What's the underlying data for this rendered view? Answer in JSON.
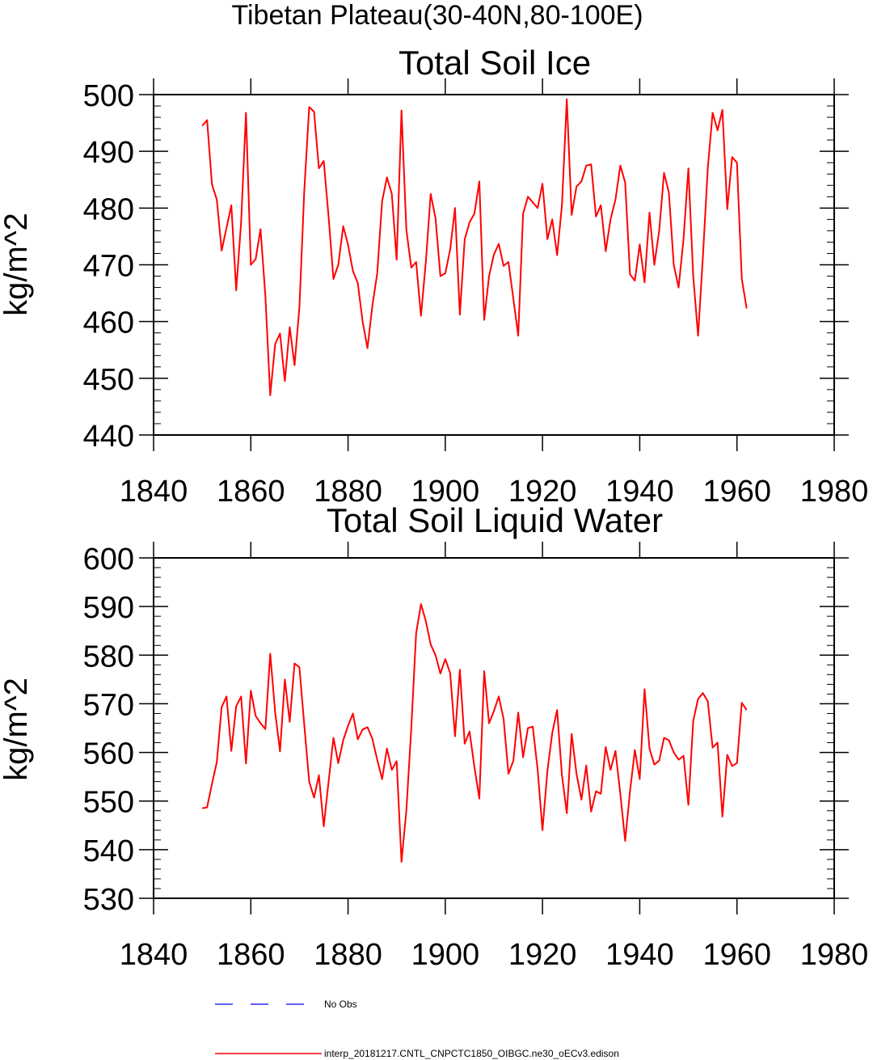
{
  "page_title": "Tibetan Plateau(30-40N,80-100E)",
  "chart_data": [
    {
      "type": "line",
      "title": "Total Soil Ice",
      "xlabel": "",
      "ylabel": "kg/m^2",
      "xlim": [
        1840,
        1980
      ],
      "ylim": [
        440,
        500
      ],
      "xticks": [
        1840,
        1860,
        1880,
        1900,
        1920,
        1940,
        1960,
        1980
      ],
      "yticks": [
        440,
        450,
        460,
        470,
        480,
        490,
        500
      ],
      "x": [
        1850,
        1851,
        1852,
        1853,
        1854,
        1855,
        1856,
        1857,
        1858,
        1859,
        1860,
        1861,
        1862,
        1863,
        1864,
        1865,
        1866,
        1867,
        1868,
        1869,
        1870,
        1871,
        1872,
        1873,
        1874,
        1875,
        1876,
        1877,
        1878,
        1879,
        1880,
        1881,
        1882,
        1883,
        1884,
        1885,
        1886,
        1887,
        1888,
        1889,
        1890,
        1891,
        1892,
        1893,
        1894,
        1895,
        1896,
        1897,
        1898,
        1899,
        1900,
        1901,
        1902,
        1903,
        1904,
        1905,
        1906,
        1907,
        1908,
        1909,
        1910,
        1911,
        1912,
        1913,
        1914,
        1915,
        1916,
        1917,
        1918,
        1919,
        1920,
        1921,
        1922,
        1923,
        1924,
        1925,
        1926,
        1927,
        1928,
        1929,
        1930,
        1931,
        1932,
        1933,
        1934,
        1935,
        1936,
        1937,
        1938,
        1939,
        1940,
        1941,
        1942,
        1943,
        1944,
        1945,
        1946,
        1947,
        1948,
        1949,
        1950,
        1951,
        1952,
        1953,
        1954,
        1955,
        1956,
        1957,
        1958,
        1959,
        1960,
        1961,
        1962
      ],
      "series": [
        {
          "name": "interp_20181217.CNTL_CNPCTC1850_OIBGC.ne30_oECv3.edison",
          "color": "#ff0000",
          "values": [
            494.5,
            495.5,
            484.2,
            481.5,
            472.5,
            476.5,
            480.5,
            465.5,
            477.5,
            496.8,
            470.0,
            471.0,
            476.3,
            464.5,
            447.0,
            456.0,
            457.9,
            449.5,
            459.0,
            452.3,
            462.5,
            483.0,
            497.8,
            497.0,
            487.0,
            488.3,
            478.5,
            467.5,
            470.0,
            476.8,
            473.5,
            468.9,
            466.8,
            460.0,
            455.3,
            462.7,
            468.5,
            481.2,
            485.4,
            482.5,
            470.9,
            497.2,
            476.2,
            469.5,
            470.5,
            461.0,
            470.5,
            482.5,
            478.2,
            468.0,
            468.5,
            472.7,
            480.0,
            461.2,
            474.5,
            477.5,
            479.0,
            484.7,
            460.3,
            468.0,
            471.8,
            473.7,
            469.8,
            470.5,
            464.0,
            457.5,
            479.0,
            482.0,
            481.0,
            480.0,
            484.3,
            474.5,
            478.0,
            471.7,
            480.5,
            499.2,
            478.8,
            483.8,
            484.7,
            487.5,
            487.7,
            478.5,
            480.5,
            472.4,
            478.0,
            481.5,
            487.5,
            484.5,
            468.3,
            467.2,
            473.6,
            466.9,
            479.2,
            470.0,
            476.0,
            486.2,
            482.7,
            470.0,
            466.0,
            474.5,
            487.0,
            468.0,
            457.5,
            471.5,
            487.0,
            496.8,
            493.7,
            497.3,
            479.8,
            489.0,
            488.0,
            467.5,
            462.3
          ]
        }
      ]
    },
    {
      "type": "line",
      "title": "Total Soil Liquid Water",
      "xlabel": "",
      "ylabel": "kg/m^2",
      "xlim": [
        1840,
        1980
      ],
      "ylim": [
        530,
        600
      ],
      "xticks": [
        1840,
        1860,
        1880,
        1900,
        1920,
        1940,
        1960,
        1980
      ],
      "yticks": [
        530,
        540,
        550,
        560,
        570,
        580,
        590,
        600
      ],
      "x": [
        1850,
        1851,
        1852,
        1853,
        1854,
        1855,
        1856,
        1857,
        1858,
        1859,
        1860,
        1861,
        1862,
        1863,
        1864,
        1865,
        1866,
        1867,
        1868,
        1869,
        1870,
        1871,
        1872,
        1873,
        1874,
        1875,
        1876,
        1877,
        1878,
        1879,
        1880,
        1881,
        1882,
        1883,
        1884,
        1885,
        1886,
        1887,
        1888,
        1889,
        1890,
        1891,
        1892,
        1893,
        1894,
        1895,
        1896,
        1897,
        1898,
        1899,
        1900,
        1901,
        1902,
        1903,
        1904,
        1905,
        1906,
        1907,
        1908,
        1909,
        1910,
        1911,
        1912,
        1913,
        1914,
        1915,
        1916,
        1917,
        1918,
        1919,
        1920,
        1921,
        1922,
        1923,
        1924,
        1925,
        1926,
        1927,
        1928,
        1929,
        1930,
        1931,
        1932,
        1933,
        1934,
        1935,
        1936,
        1937,
        1938,
        1939,
        1940,
        1941,
        1942,
        1943,
        1944,
        1945,
        1946,
        1947,
        1948,
        1949,
        1950,
        1951,
        1952,
        1953,
        1954,
        1955,
        1956,
        1957,
        1958,
        1959,
        1960,
        1961,
        1962
      ],
      "series": [
        {
          "name": "interp_20181217.CNTL_CNPCTC1850_OIBGC.ne30_oECv3.edison",
          "color": "#ff0000",
          "values": [
            548.5,
            548.7,
            553.5,
            558.0,
            569.3,
            571.5,
            560.3,
            569.5,
            571.5,
            557.7,
            572.7,
            567.5,
            566.0,
            564.8,
            580.3,
            568.3,
            560.2,
            575.0,
            566.3,
            578.3,
            577.5,
            565.7,
            554.0,
            550.7,
            555.3,
            544.8,
            554.0,
            563.0,
            557.8,
            562.5,
            565.5,
            568.0,
            562.7,
            564.7,
            565.2,
            562.8,
            558.5,
            554.5,
            560.8,
            556.4,
            558.2,
            537.5,
            548.0,
            565.0,
            584.5,
            590.5,
            587.0,
            582.2,
            580.0,
            576.2,
            579.2,
            576.3,
            563.3,
            577.0,
            561.8,
            564.3,
            557.0,
            550.5,
            576.7,
            566.0,
            568.5,
            571.5,
            566.9,
            555.6,
            558.3,
            568.2,
            559.0,
            565.0,
            565.3,
            556.5,
            544.0,
            556.2,
            564.0,
            568.7,
            555.3,
            547.5,
            563.8,
            555.6,
            550.3,
            557.3,
            547.8,
            552.0,
            551.5,
            561.1,
            556.4,
            560.3,
            551.5,
            541.8,
            552.0,
            560.5,
            554.5,
            573.0,
            560.8,
            557.5,
            558.3,
            563.0,
            562.5,
            560.0,
            558.5,
            559.3,
            549.2,
            566.5,
            571.0,
            572.2,
            570.5,
            561.0,
            562.0,
            546.8,
            559.5,
            557.2,
            557.8,
            570.2,
            568.7
          ]
        }
      ]
    }
  ],
  "legend": [
    {
      "label": "No Obs",
      "color": "#0000ff",
      "style": "dashed"
    },
    {
      "label": "interp_20181217.CNTL_CNPCTC1850_OIBGC.ne30_oECv3.edison",
      "color": "#ff0000",
      "style": "solid"
    }
  ]
}
